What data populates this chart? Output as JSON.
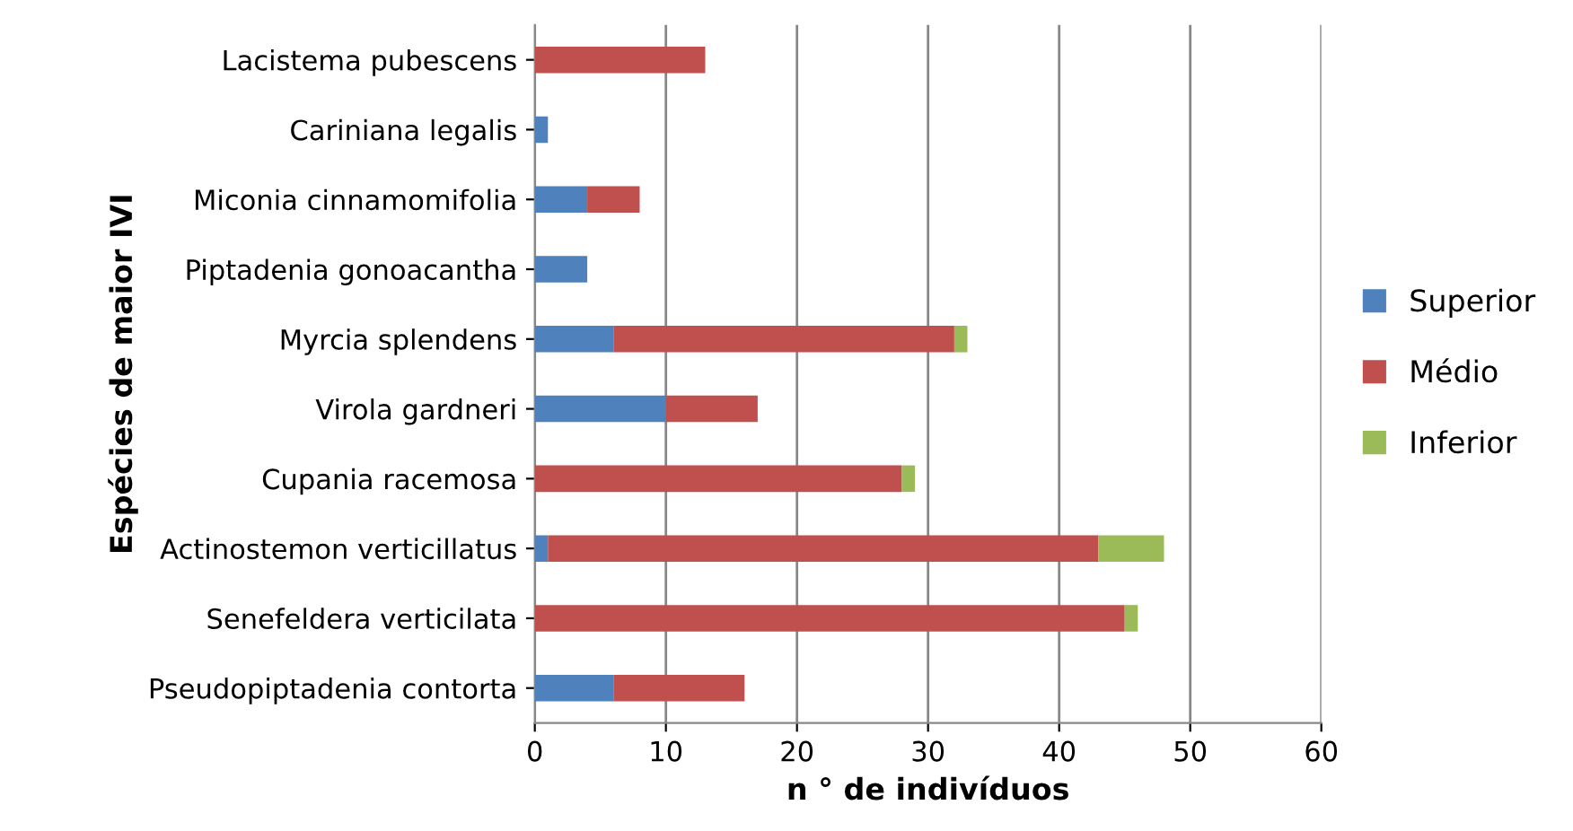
{
  "chart_data": {
    "type": "bar",
    "orientation": "horizontal",
    "stacked": true,
    "categories": [
      "Lacistema pubescens",
      "Cariniana legalis",
      "Miconia cinnamomifolia",
      "Piptadenia gonoacantha",
      "Myrcia splendens",
      "Virola gardneri",
      "Cupania racemosa",
      "Actinostemon verticillatus",
      "Senefeldera verticilata",
      "Pseudopiptadenia contorta"
    ],
    "series": [
      {
        "name": "Superior",
        "color": "#4f81bd",
        "values": [
          0,
          1,
          4,
          4,
          6,
          10,
          0,
          1,
          0,
          6
        ]
      },
      {
        "name": "Médio",
        "color": "#c0504d",
        "values": [
          13,
          0,
          4,
          0,
          26,
          7,
          28,
          42,
          45,
          10
        ]
      },
      {
        "name": "Inferior",
        "color": "#9bbb59",
        "values": [
          0,
          0,
          0,
          0,
          1,
          0,
          1,
          5,
          1,
          0
        ]
      }
    ],
    "xlabel": "n ° de indivíduos",
    "ylabel": "Espécies de maior IVI",
    "xlim": [
      0,
      60
    ],
    "xticks": [
      0,
      10,
      20,
      30,
      40,
      50,
      60
    ],
    "grid": "x",
    "legend": "right"
  }
}
